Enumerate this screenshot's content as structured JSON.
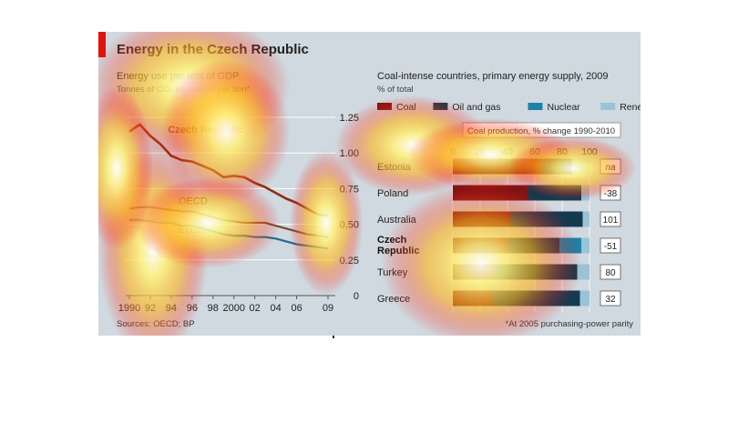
{
  "figure": {
    "title": "Energy in the Czech Republic",
    "sources": "Sources: OECD; BP",
    "footnote": "*At 2005 purchasing-power parity"
  },
  "colors": {
    "accent": "#e3120b",
    "panel_bg": "#cfd9df",
    "czech": "#8e2d12",
    "oecd": "#7a4a30",
    "eu15": "#1f6e8c",
    "coal": "#7a1414",
    "oil_gas": "#143a4e",
    "nuclear": "#1c82a8",
    "renewable": "#9ac3d6"
  },
  "chart_data": [
    {
      "type": "line",
      "title": "Energy use per unit of GDP",
      "subtitle": "Tonnes of CO₂ equivalent per $bn*",
      "x_tick_labels": [
        "1990",
        "92",
        "94",
        "96",
        "98",
        "2000",
        "02",
        "04",
        "06",
        "09"
      ],
      "y_ticks": [
        "1.25",
        "1.00",
        "0.75",
        "0.50",
        "0.25",
        "0"
      ],
      "ylim": [
        0,
        1.25
      ],
      "xlim": [
        1990,
        2009
      ],
      "grid": true,
      "series": [
        {
          "name": "Czech Republic",
          "x": [
            1990,
            1991,
            1992,
            1993,
            1994,
            1995,
            1996,
            1997,
            1998,
            1999,
            2000,
            2001,
            2002,
            2003,
            2004,
            2005,
            2006,
            2007,
            2008,
            2009
          ],
          "values": [
            1.15,
            1.2,
            1.12,
            1.06,
            0.98,
            0.95,
            0.94,
            0.91,
            0.88,
            0.83,
            0.84,
            0.83,
            0.79,
            0.76,
            0.72,
            0.68,
            0.65,
            0.61,
            0.57,
            0.56
          ]
        },
        {
          "name": "OECD",
          "x": [
            1990,
            1991,
            1992,
            1993,
            1994,
            1995,
            1996,
            1997,
            1998,
            1999,
            2000,
            2001,
            2002,
            2003,
            2004,
            2005,
            2006,
            2007,
            2008,
            2009
          ],
          "values": [
            0.61,
            0.62,
            0.62,
            0.61,
            0.6,
            0.59,
            0.59,
            0.57,
            0.55,
            0.53,
            0.52,
            0.51,
            0.51,
            0.51,
            0.49,
            0.47,
            0.45,
            0.43,
            0.42,
            0.41
          ]
        },
        {
          "name": "EU15",
          "x": [
            1990,
            1991,
            1992,
            1993,
            1994,
            1995,
            1996,
            1997,
            1998,
            1999,
            2000,
            2001,
            2002,
            2003,
            2004,
            2005,
            2006,
            2007,
            2008,
            2009
          ],
          "values": [
            0.53,
            0.53,
            0.52,
            0.51,
            0.51,
            0.49,
            0.49,
            0.47,
            0.45,
            0.43,
            0.42,
            0.42,
            0.41,
            0.41,
            0.4,
            0.38,
            0.36,
            0.35,
            0.34,
            0.33
          ]
        }
      ]
    },
    {
      "type": "bar",
      "orientation": "horizontal-stacked",
      "title": "Coal-intense countries, primary energy supply, 2009",
      "subtitle": "% of total",
      "legend": [
        "Coal",
        "Oil and gas",
        "Nuclear",
        "Renewable"
      ],
      "legend_placement": "top",
      "x_ticks": [
        "0",
        "20",
        "40",
        "60",
        "80",
        "100"
      ],
      "xlim": [
        0,
        100
      ],
      "side_column_title": "Coal production, % change 1990-2010",
      "categories": [
        "Estonia",
        "Poland",
        "Australia",
        "Czech Republic",
        "Turkey",
        "Greece"
      ],
      "category_display": [
        "Estonia",
        "Poland",
        "Australia",
        "Czech\nRepublic",
        "Turkey",
        "Greece"
      ],
      "series": [
        {
          "name": "Coal",
          "values": [
            65,
            55,
            42,
            41,
            31,
            29
          ]
        },
        {
          "name": "Oil and gas",
          "values": [
            22,
            39,
            53,
            37,
            60,
            64
          ]
        },
        {
          "name": "Nuclear",
          "values": [
            0,
            0,
            0,
            16,
            0,
            0
          ]
        },
        {
          "name": "Renewable",
          "values": [
            13,
            6,
            5,
            6,
            9,
            7
          ]
        }
      ],
      "coal_production_change": [
        "na",
        "-38",
        "101",
        "-51",
        "80",
        "32"
      ],
      "highlight": "Czech Republic"
    }
  ]
}
